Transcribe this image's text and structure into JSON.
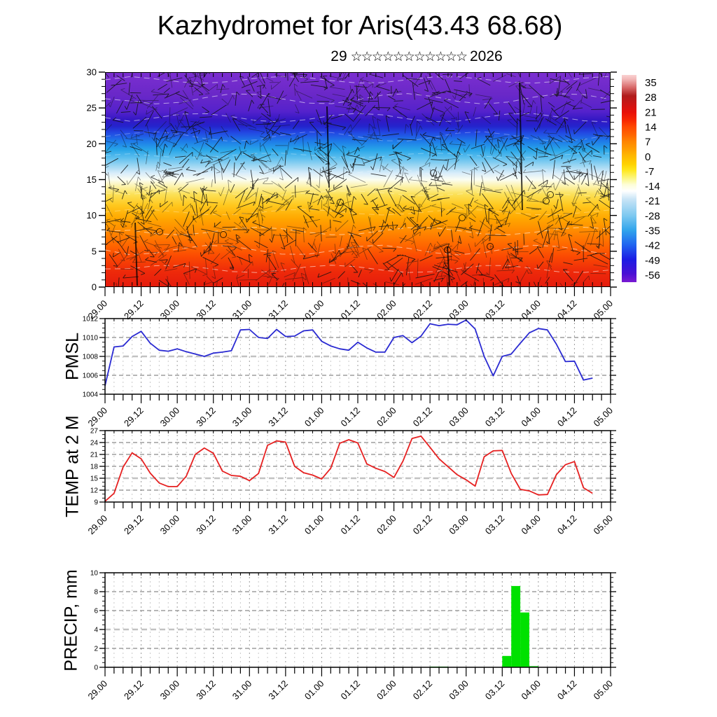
{
  "title": "Kazhydromet for Aris(43.43 68.68)",
  "subtitle": {
    "day": "29",
    "stars": "☆☆☆☆☆☆☆☆☆☆☆",
    "year": "2026"
  },
  "time_axis": {
    "tick_labels": [
      "29.00",
      "29.12",
      "30.00",
      "30.12",
      "31.00",
      "31.12",
      "01.00",
      "01.12",
      "02.00",
      "02.12",
      "03.00",
      "03.12",
      "04.00",
      "04.12",
      "05.00"
    ],
    "tick_interval_hours": 12,
    "minor_interval_hours": 3,
    "total_hours": 168
  },
  "chart_data": [
    {
      "type": "heatmap",
      "name": "temperature-wind-cross-section",
      "description": "time-height cross-section: colored temperature field with overlaid wind barbs and white streamlines",
      "ylim": [
        0,
        30
      ],
      "yticks": [
        0,
        5,
        10,
        15,
        20,
        25,
        30
      ],
      "ytick_minor_step": 1,
      "field_gradient_top_to_bottom": [
        [
          "0%",
          "#7b2fd0"
        ],
        [
          "10%",
          "#6a28c8"
        ],
        [
          "18%",
          "#5522cc"
        ],
        [
          "22%",
          "#3318c4"
        ],
        [
          "25%",
          "#2423cc"
        ],
        [
          "28%",
          "#2247e2"
        ],
        [
          "32%",
          "#1e7ae8"
        ],
        [
          "36%",
          "#27a5e8"
        ],
        [
          "40%",
          "#5fc0ee"
        ],
        [
          "44%",
          "#a5d9f3"
        ],
        [
          "47%",
          "#d9edfa"
        ],
        [
          "50%",
          "#fbfdf2"
        ],
        [
          "53%",
          "#fcf3ae"
        ],
        [
          "57%",
          "#fbe055"
        ],
        [
          "62%",
          "#ffc81e"
        ],
        [
          "68%",
          "#ffa800"
        ],
        [
          "74%",
          "#ff8a00"
        ],
        [
          "80%",
          "#ff6a00"
        ],
        [
          "86%",
          "#fb4a02"
        ],
        [
          "93%",
          "#ee2a0a"
        ],
        [
          "100%",
          "#e51b0c"
        ]
      ],
      "colorbar": {
        "tick_labels": [
          "35",
          "28",
          "21",
          "14",
          "7",
          "0",
          "-7",
          "-14",
          "-21",
          "-28",
          "-35",
          "-42",
          "-49",
          "-56"
        ],
        "gradient_top_to_bottom": [
          [
            "0%",
            "#fad2d2"
          ],
          [
            "2%",
            "#f2b8b8"
          ],
          [
            "6%",
            "#d86a6a"
          ],
          [
            "10%",
            "#b01c1c"
          ],
          [
            "14%",
            "#cc1414"
          ],
          [
            "18%",
            "#e81008"
          ],
          [
            "22%",
            "#f82800"
          ],
          [
            "25%",
            "#ff4800"
          ],
          [
            "29%",
            "#ff6600"
          ],
          [
            "32%",
            "#ff8400"
          ],
          [
            "36%",
            "#ffa000"
          ],
          [
            "39%",
            "#ffb800"
          ],
          [
            "43%",
            "#ffd200"
          ],
          [
            "46%",
            "#ffe81e"
          ],
          [
            "50%",
            "#fcf787"
          ],
          [
            "53%",
            "#fdfdd8"
          ],
          [
            "56%",
            "#ffffff"
          ],
          [
            "60%",
            "#c8e4f6"
          ],
          [
            "68%",
            "#7cc8f0"
          ],
          [
            "75%",
            "#30a4ec"
          ],
          [
            "82%",
            "#2064f0"
          ],
          [
            "89%",
            "#1c1ce4"
          ],
          [
            "96%",
            "#4a10d4"
          ],
          [
            "100%",
            "#7a1ad2"
          ]
        ]
      }
    },
    {
      "type": "line",
      "title": "PMSL",
      "color": "#2a2ad2",
      "ylim": [
        1004,
        1012
      ],
      "yticks": [
        1004,
        1006,
        1008,
        1010,
        1012
      ],
      "ytick_minor_step": 0.5,
      "gridlines": [
        1006,
        1008,
        1010
      ],
      "highlight_gridline": 1008,
      "x_start_hour": 0,
      "x_step_hours": 3,
      "values": [
        1004.9,
        1009.0,
        1009.1,
        1010.1,
        1010.65,
        1009.4,
        1008.65,
        1008.55,
        1008.8,
        1008.5,
        1008.25,
        1008.0,
        1008.35,
        1008.45,
        1008.6,
        1010.8,
        1010.85,
        1010.0,
        1009.9,
        1010.85,
        1010.1,
        1010.15,
        1010.7,
        1010.8,
        1009.6,
        1009.1,
        1008.8,
        1008.65,
        1009.5,
        1008.9,
        1008.45,
        1008.45,
        1010.0,
        1010.2,
        1009.45,
        1010.15,
        1011.45,
        1011.25,
        1011.4,
        1011.35,
        1011.85,
        1010.9,
        1008.0,
        1005.95,
        1008.0,
        1008.25,
        1009.4,
        1010.5,
        1010.95,
        1010.8,
        1009.3,
        1007.45,
        1007.5,
        1005.5,
        1005.7
      ]
    },
    {
      "type": "line",
      "title": "TEMP at 2 M",
      "color": "#e62020",
      "ylim": [
        9,
        27
      ],
      "yticks": [
        9,
        12,
        15,
        18,
        21,
        24,
        27
      ],
      "ytick_minor_step": 1,
      "gridlines": [
        12,
        15,
        18,
        21,
        24
      ],
      "highlight_gridline": 15,
      "x_start_hour": 0,
      "x_step_hours": 3,
      "values": [
        9.2,
        11.2,
        17.8,
        21.4,
        19.9,
        16.3,
        13.8,
        12.9,
        12.9,
        15.5,
        21.0,
        22.6,
        21.3,
        16.8,
        15.7,
        15.5,
        14.4,
        16.2,
        23.3,
        24.4,
        24.1,
        18.0,
        16.4,
        15.8,
        14.8,
        17.5,
        23.8,
        24.7,
        23.9,
        18.6,
        17.5,
        16.7,
        15.2,
        19.3,
        25.0,
        25.6,
        22.8,
        19.9,
        17.9,
        15.9,
        14.6,
        13.0,
        20.4,
        21.9,
        22.0,
        16.2,
        12.2,
        11.8,
        10.8,
        10.9,
        15.9,
        18.4,
        19.2,
        12.6,
        11.2
      ]
    },
    {
      "type": "bar",
      "title": "PRECIP, mm",
      "color": "#00e100",
      "ylim": [
        0,
        10
      ],
      "yticks": [
        0,
        2,
        4,
        6,
        8,
        10
      ],
      "ytick_minor_step": 0.5,
      "gridlines": [
        2,
        4,
        6,
        8
      ],
      "highlight_gridline": 4,
      "bar_width_hours": 3,
      "bars": [
        {
          "start_hour": 108,
          "value": 0.07
        },
        {
          "start_hour": 111,
          "value": 0.07
        },
        {
          "start_hour": 132,
          "value": 1.2
        },
        {
          "start_hour": 135,
          "value": 8.6
        },
        {
          "start_hour": 138,
          "value": 5.8
        },
        {
          "start_hour": 141,
          "value": 0.12
        }
      ]
    }
  ]
}
